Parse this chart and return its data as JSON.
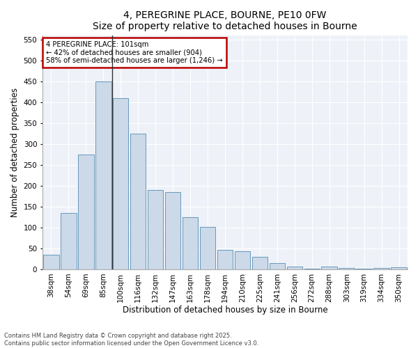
{
  "title1": "4, PEREGRINE PLACE, BOURNE, PE10 0FW",
  "title2": "Size of property relative to detached houses in Bourne",
  "xlabel": "Distribution of detached houses by size in Bourne",
  "ylabel": "Number of detached properties",
  "categories": [
    "38sqm",
    "54sqm",
    "69sqm",
    "85sqm",
    "100sqm",
    "116sqm",
    "132sqm",
    "147sqm",
    "163sqm",
    "178sqm",
    "194sqm",
    "210sqm",
    "225sqm",
    "241sqm",
    "256sqm",
    "272sqm",
    "288sqm",
    "303sqm",
    "319sqm",
    "334sqm",
    "350sqm"
  ],
  "values": [
    35,
    135,
    275,
    450,
    410,
    325,
    190,
    185,
    125,
    102,
    46,
    44,
    30,
    15,
    6,
    2,
    7,
    3,
    2,
    3,
    5
  ],
  "bar_color": "#ccd9e8",
  "bar_edge_color": "#6699bb",
  "property_line_x": 3.5,
  "annotation_label": "4 PEREGRINE PLACE: 101sqm",
  "annotation_line1": "← 42% of detached houses are smaller (904)",
  "annotation_line2": "58% of semi-detached houses are larger (1,246) →",
  "annotation_box_color": "#bb0000",
  "ylim": [
    0,
    560
  ],
  "yticks": [
    0,
    50,
    100,
    150,
    200,
    250,
    300,
    350,
    400,
    450,
    500,
    550
  ],
  "footer1": "Contains HM Land Registry data © Crown copyright and database right 2025.",
  "footer2": "Contains public sector information licensed under the Open Government Licence v3.0.",
  "bg_color": "#ffffff",
  "plot_bg_color": "#eef2f8",
  "grid_color": "#ffffff",
  "title_fontsize": 10,
  "axis_label_fontsize": 8.5,
  "tick_fontsize": 7.5
}
